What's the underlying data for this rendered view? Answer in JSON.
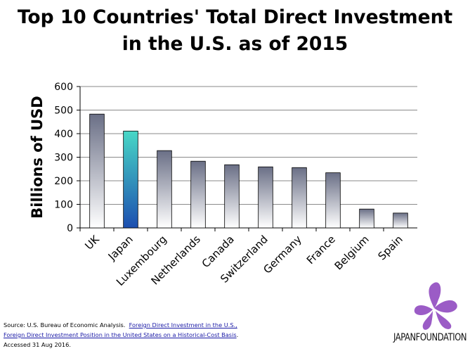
{
  "chart_data": {
    "type": "bar",
    "title_line1": "Top 10 Countries' Total Direct Investment",
    "title_line2": "in the U.S. as of 2015",
    "xlabel": "",
    "ylabel": "Billions of USD",
    "ylim": [
      0,
      600
    ],
    "yticks": [
      0,
      100,
      200,
      300,
      400,
      500,
      600
    ],
    "grid": true,
    "legend": "none",
    "categories": [
      "UK",
      "Japan",
      "Luxembourg",
      "Netherlands",
      "Canada",
      "Switzerland",
      "Germany",
      "France",
      "Belgium",
      "Spain"
    ],
    "values": [
      483,
      411,
      328,
      283,
      268,
      259,
      256,
      234,
      80,
      63
    ],
    "highlight_category": "Japan",
    "colors": {
      "bar_top": "#6a6f86",
      "bar_bottom": "#ffffff",
      "highlight_top": "#48d7c6",
      "highlight_bottom": "#1d4fb0",
      "grid": "#8a8a8a"
    }
  },
  "source": {
    "prefix": "Source: U.S. Bureau of Economic Analysis.",
    "link_line1": "Foreign Direct Investment in the U.S.,",
    "link_line2": "Foreign Direct Investment Position in the United States on a Historical-Cost Basis",
    "suffix": ".",
    "accessed": "Accessed 31 Aug 2016."
  },
  "logo": {
    "text": "JAPANFOUNDATION",
    "icon": "butterfly-icon",
    "color": "#9b5cc6"
  }
}
